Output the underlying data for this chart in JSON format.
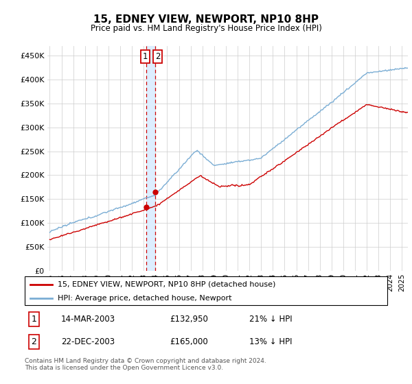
{
  "title": "15, EDNEY VIEW, NEWPORT, NP10 8HP",
  "subtitle": "Price paid vs. HM Land Registry's House Price Index (HPI)",
  "ylim": [
    0,
    470000
  ],
  "xlim_start": 1994.8,
  "xlim_end": 2025.5,
  "legend_line1": "15, EDNEY VIEW, NEWPORT, NP10 8HP (detached house)",
  "legend_line2": "HPI: Average price, detached house, Newport",
  "transaction1_date": "14-MAR-2003",
  "transaction1_price": "£132,950",
  "transaction1_hpi": "21% ↓ HPI",
  "transaction2_date": "22-DEC-2003",
  "transaction2_price": "£165,000",
  "transaction2_hpi": "13% ↓ HPI",
  "footnote": "Contains HM Land Registry data © Crown copyright and database right 2024.\nThis data is licensed under the Open Government Licence v3.0.",
  "red_color": "#cc0000",
  "blue_color": "#7aadd4",
  "vline1_x": 2003.2,
  "vline2_x": 2003.97,
  "marker1_x": 2003.2,
  "marker1_y": 132950,
  "marker2_x": 2003.97,
  "marker2_y": 165000,
  "shade_color": "#ddeeff"
}
